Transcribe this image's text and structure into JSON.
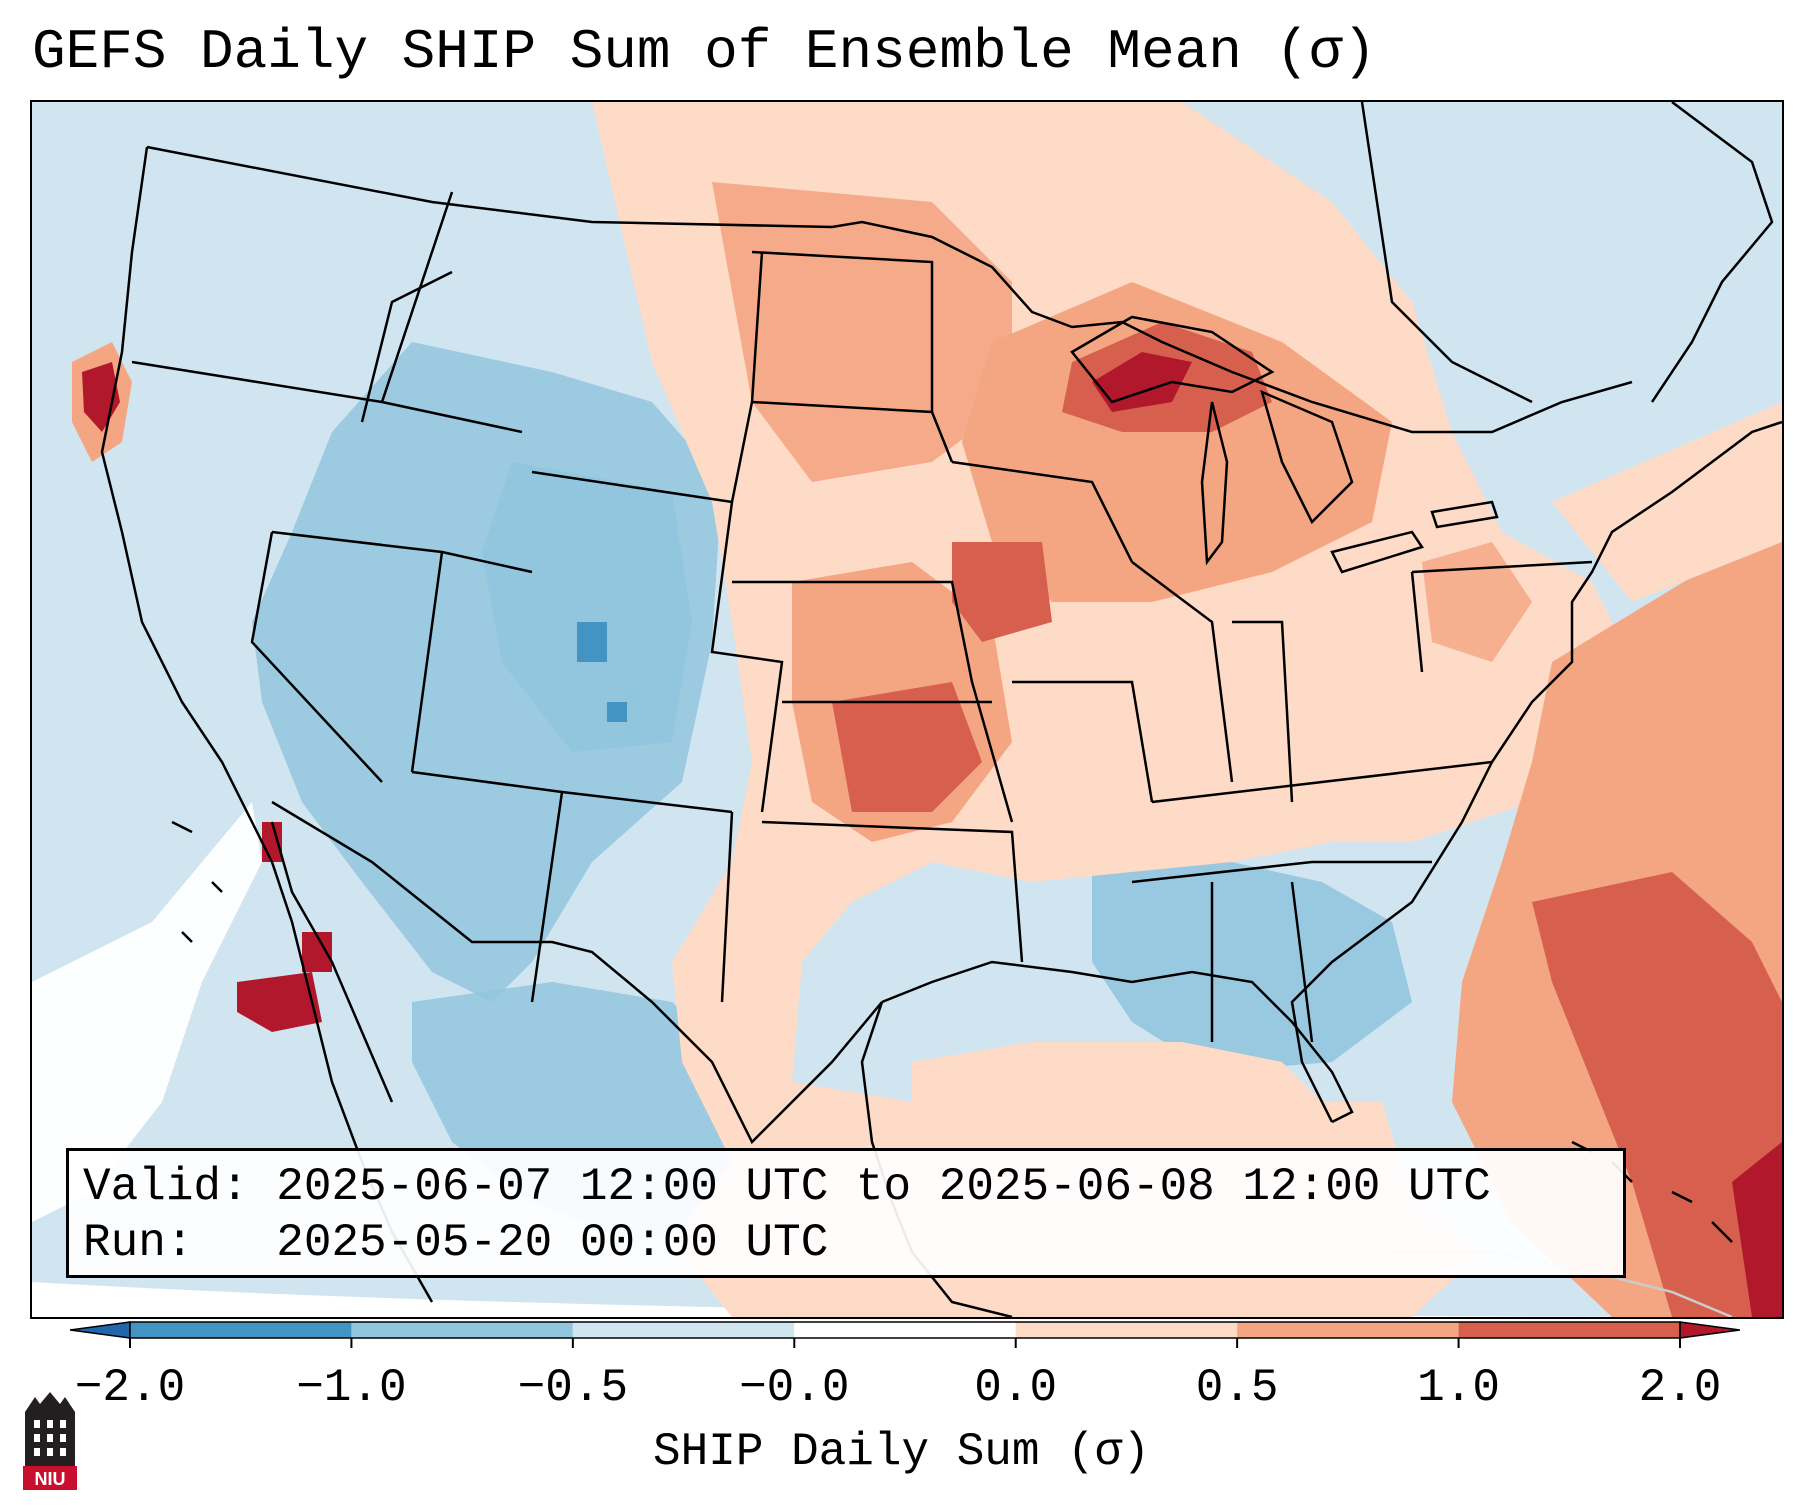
{
  "title": "GEFS Daily SHIP Sum of Ensemble Mean (σ)",
  "info": {
    "valid_line": "Valid: 2025-06-07 12:00 UTC to 2025-06-08 12:00 UTC",
    "run_line": "Run:   2025-05-20 00:00 UTC"
  },
  "colorbar": {
    "label": "SHIP Daily Sum (σ)",
    "ticks": [
      "−2.0",
      "−1.0",
      "−0.5",
      "−0.0",
      "0.0",
      "0.5",
      "1.0",
      "2.0"
    ],
    "colors": [
      "#2166ac",
      "#4393c3",
      "#92c5de",
      "#d1e5f0",
      "#ffffff",
      "#fddbc7",
      "#f4a582",
      "#d6604d",
      "#b2182b"
    ],
    "extend": "both"
  },
  "logo": {
    "text": "NIU",
    "color": "#c8102e"
  }
}
